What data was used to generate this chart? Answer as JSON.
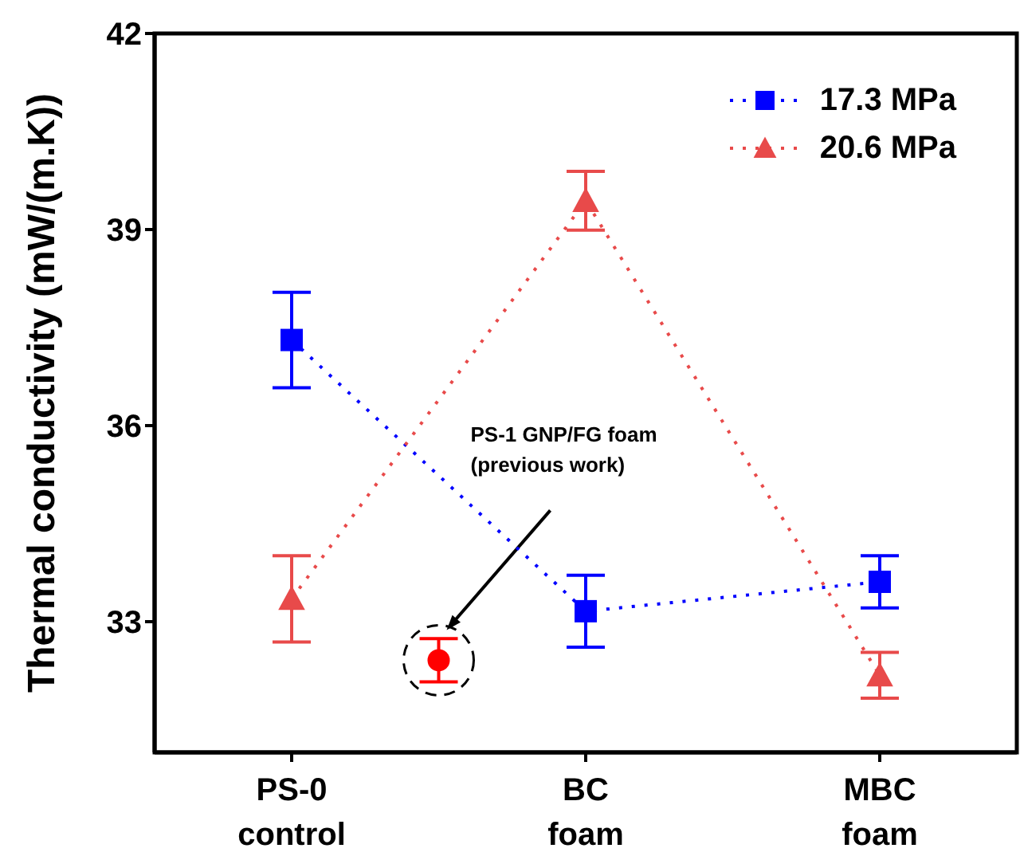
{
  "chart_data": {
    "type": "line",
    "ylabel": "Thermal conductivity (mW/(m.K))",
    "categories": [
      "PS-0\ncontrol",
      null,
      "BC\nfoam",
      null,
      "MBC\nfoam"
    ],
    "series": [
      {
        "name": "17.3 MPa",
        "color": "#0000ff",
        "marker": "square",
        "line_style": "dotted",
        "values": [
          37.31,
          null,
          33.16,
          null,
          33.61
        ],
        "errors": [
          0.73,
          null,
          0.55,
          null,
          0.4
        ]
      },
      {
        "name": "20.6 MPa",
        "color": "#e84a4a",
        "marker": "triangle",
        "line_style": "dotted",
        "values": [
          33.35,
          null,
          39.44,
          null,
          32.18
        ],
        "errors": [
          0.66,
          null,
          0.45,
          null,
          0.35
        ]
      },
      {
        "type": "scatter",
        "color": "#ff0000",
        "marker": "circle",
        "values": [
          null,
          32.41,
          null,
          null,
          null
        ],
        "errors": [
          null,
          0.33,
          null,
          null,
          null
        ]
      }
    ],
    "ylim": [
      31,
      42
    ],
    "yticks": [
      33,
      36,
      39,
      42
    ],
    "legend": "top right",
    "annotations": [
      "PS-1 GNP/FG foam\n(previous work)"
    ]
  }
}
